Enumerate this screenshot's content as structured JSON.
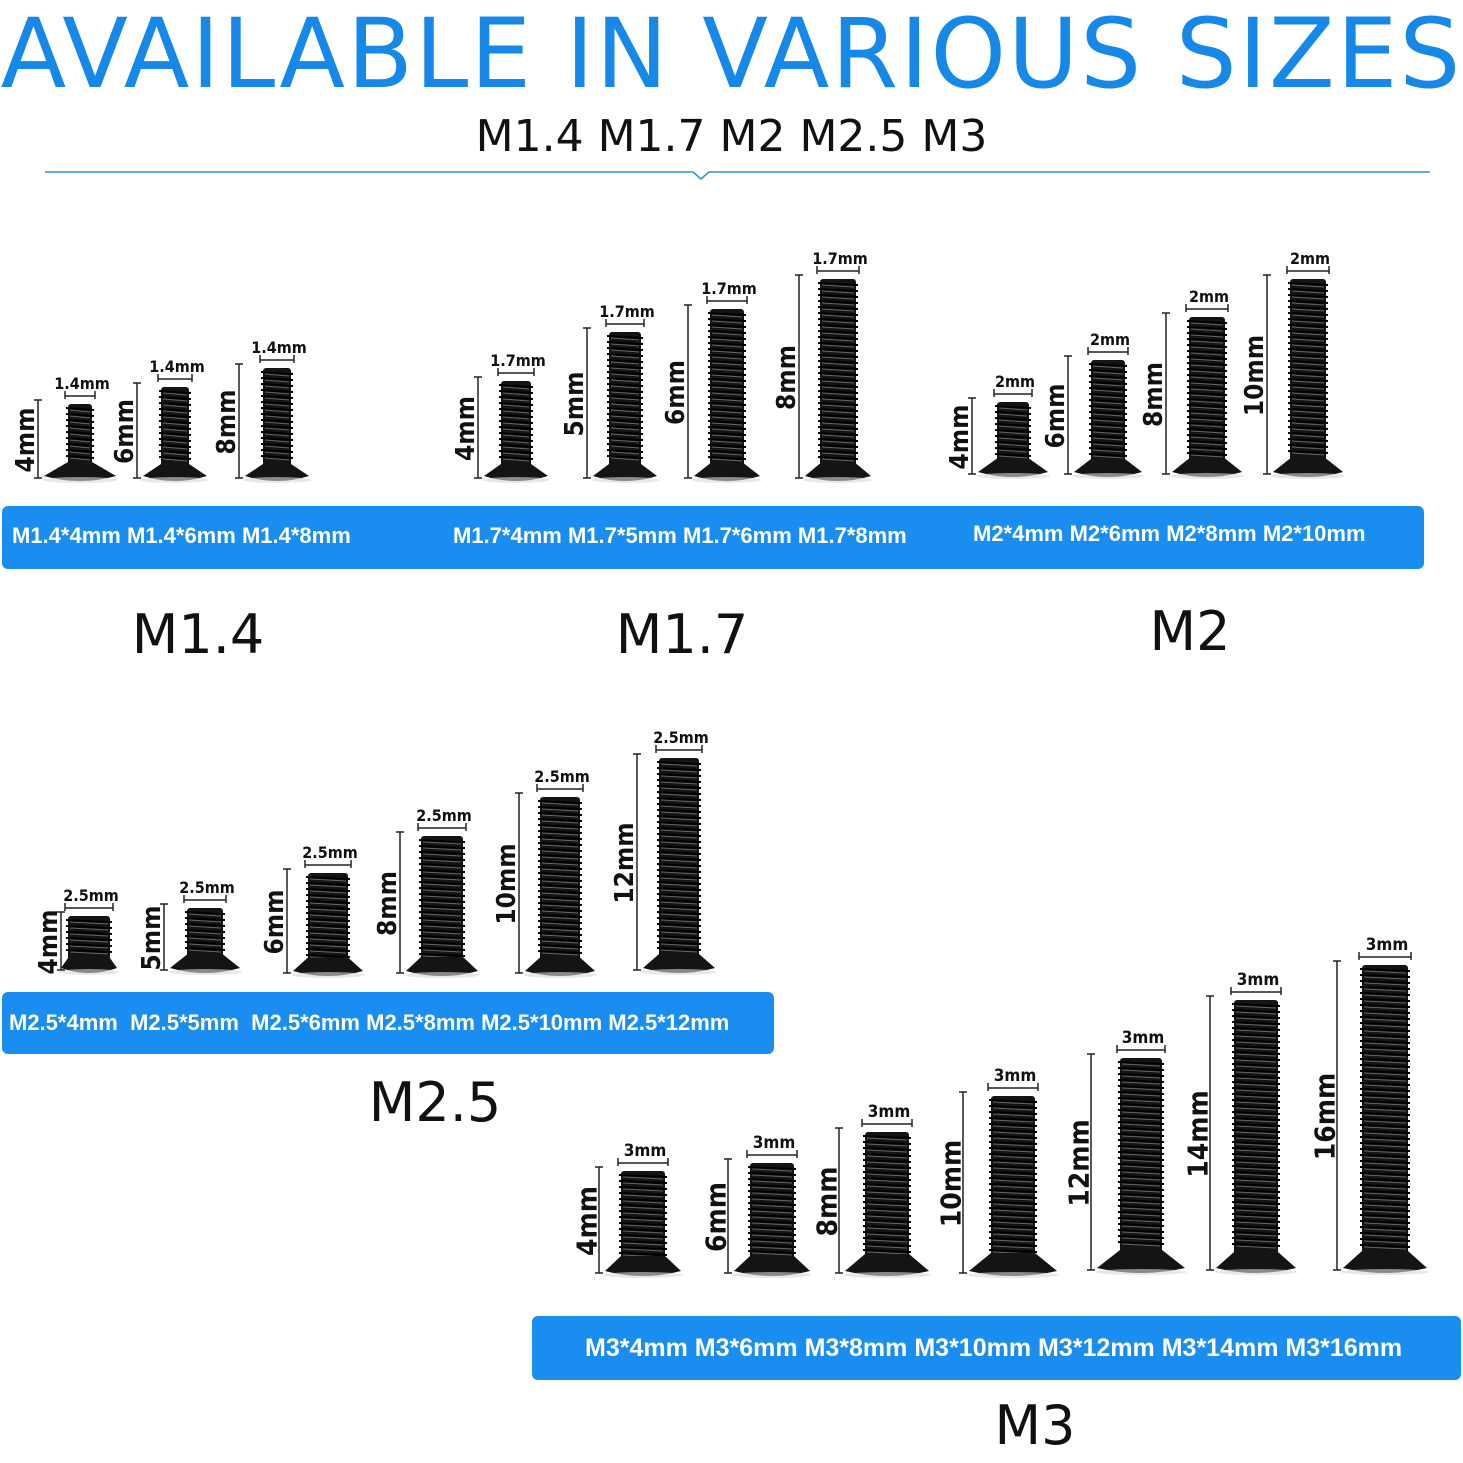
{
  "headline": "AVAILABLE IN VARIOUS SIZES",
  "subheadline": "M1.4 M1.7 M2 M2.5 M3",
  "colors": {
    "accent": "#1a8df0",
    "headline": "#1689e8",
    "screw": "#141414"
  },
  "groups": [
    {
      "name": "M1.4",
      "diameter": "1.4mm",
      "labels": [
        "M1.4*4mm",
        "M1.4*6mm",
        "M1.4*8mm"
      ],
      "screws": [
        {
          "length": "4mm",
          "diameter": "1.4mm"
        },
        {
          "length": "6mm",
          "diameter": "1.4mm"
        },
        {
          "length": "8mm",
          "diameter": "1.4mm"
        }
      ]
    },
    {
      "name": "M1.7",
      "diameter": "1.7mm",
      "labels": [
        "M1.7*4mm",
        "M1.7*5mm",
        "M1.7*6mm",
        "M1.7*8mm"
      ],
      "screws": [
        {
          "length": "4mm",
          "diameter": "1.7mm"
        },
        {
          "length": "5mm",
          "diameter": "1.7mm"
        },
        {
          "length": "6mm",
          "diameter": "1.7mm"
        },
        {
          "length": "8mm",
          "diameter": "1.7mm"
        }
      ]
    },
    {
      "name": "M2",
      "diameter": "2mm",
      "labels": [
        "M2*4mm",
        "M2*6mm",
        "M2*8mm",
        "M2*10mm"
      ],
      "screws": [
        {
          "length": "4mm",
          "diameter": "2mm"
        },
        {
          "length": "6mm",
          "diameter": "2mm"
        },
        {
          "length": "8mm",
          "diameter": "2mm"
        },
        {
          "length": "10mm",
          "diameter": "2mm"
        }
      ]
    },
    {
      "name": "M2.5",
      "diameter": "2.5mm",
      "labels": [
        "M2.5*4mm",
        "M2.5*5mm",
        "M2.5*6mm",
        "M2.5*8mm",
        "M2.5*10mm",
        "M2.5*12mm"
      ],
      "screws": [
        {
          "length": "4mm",
          "diameter": "2.5mm"
        },
        {
          "length": "5mm",
          "diameter": "2.5mm"
        },
        {
          "length": "6mm",
          "diameter": "2.5mm"
        },
        {
          "length": "8mm",
          "diameter": "2.5mm"
        },
        {
          "length": "10mm",
          "diameter": "2.5mm"
        },
        {
          "length": "12mm",
          "diameter": "2.5mm"
        }
      ]
    },
    {
      "name": "M3",
      "diameter": "3mm",
      "labels": [
        "M3*4mm",
        "M3*6mm",
        "M3*8mm",
        "M3*10mm",
        "M3*12mm",
        "M3*14mm",
        "M3*16mm"
      ],
      "screws": [
        {
          "length": "4mm",
          "diameter": "3mm"
        },
        {
          "length": "6mm",
          "diameter": "3mm"
        },
        {
          "length": "8mm",
          "diameter": "3mm"
        },
        {
          "length": "10mm",
          "diameter": "3mm"
        },
        {
          "length": "12mm",
          "diameter": "3mm"
        },
        {
          "length": "14mm",
          "diameter": "3mm"
        },
        {
          "length": "16mm",
          "diameter": "3mm"
        }
      ]
    }
  ]
}
